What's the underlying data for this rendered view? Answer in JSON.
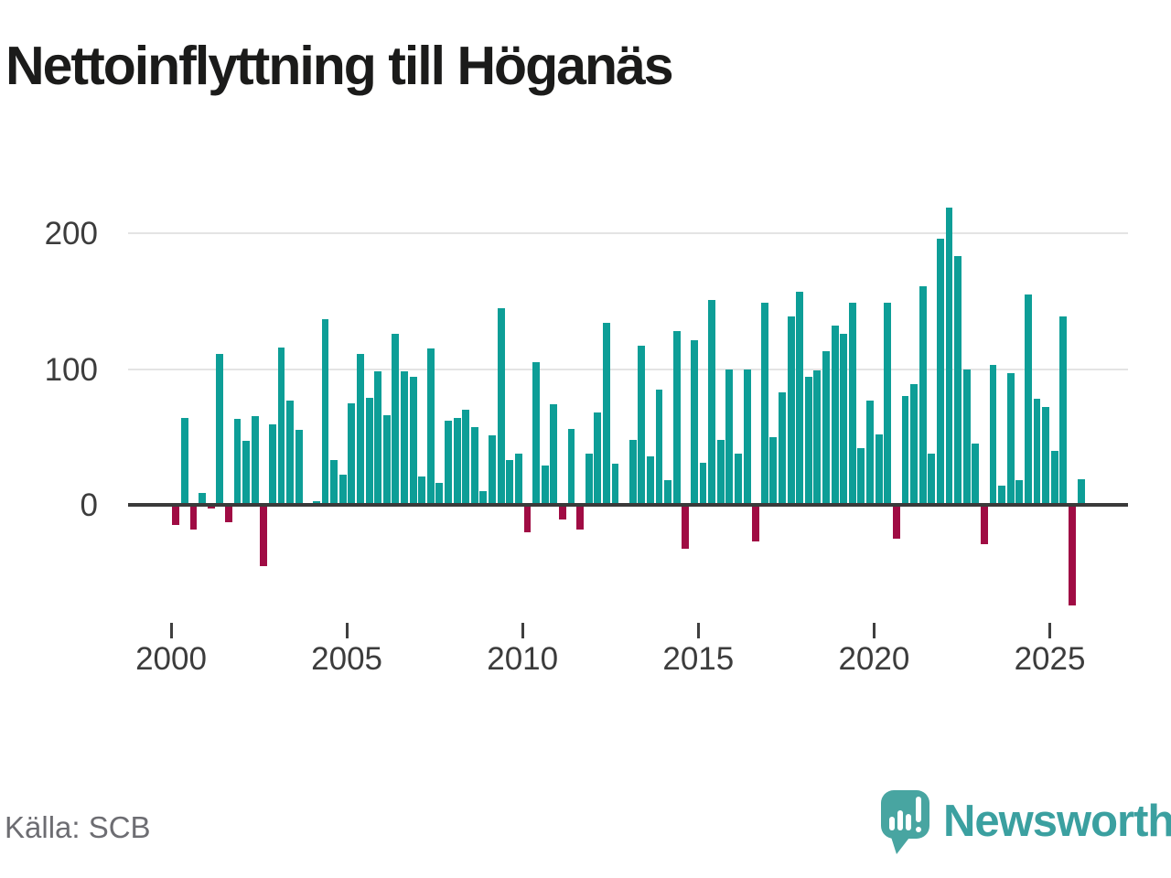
{
  "header": {
    "title": "Nettoinflyttning till Höganäs"
  },
  "footer": {
    "source": "Källa: SCB",
    "brand": "Newsworthy"
  },
  "colors": {
    "positive_bar": "#0d9e97",
    "negative_bar": "#a00c44",
    "gridline": "#e4e4e4",
    "zero_line": "#3a3a3a",
    "axis_text": "#3c3c3c",
    "brand_teal": "#48a5a1",
    "brand_text_teal": "#3ba0a0"
  },
  "chart_data": {
    "type": "bar",
    "title": "Nettoinflyttning till Höganäs",
    "x_start": "2000 Q1",
    "x_frequency": "quarterly",
    "values": [
      -15,
      64,
      -18,
      9,
      -3,
      111,
      -13,
      63,
      47,
      65,
      -45,
      59,
      116,
      77,
      55,
      0,
      3,
      137,
      33,
      22,
      75,
      111,
      79,
      98,
      66,
      126,
      98,
      94,
      21,
      115,
      16,
      62,
      64,
      70,
      57,
      10,
      51,
      145,
      33,
      38,
      -20,
      105,
      29,
      74,
      -11,
      56,
      -18,
      38,
      68,
      134,
      30,
      0,
      48,
      117,
      36,
      85,
      18,
      128,
      -32,
      121,
      31,
      151,
      48,
      100,
      38,
      100,
      -27,
      149,
      50,
      83,
      139,
      157,
      94,
      99,
      113,
      132,
      126,
      149,
      42,
      77,
      52,
      149,
      -25,
      80,
      89,
      161,
      38,
      196,
      219,
      183,
      100,
      45,
      -29,
      103,
      14,
      97,
      18,
      155,
      78,
      72,
      40,
      139,
      -74,
      19
    ],
    "x_tick_labels": [
      "2000",
      "2005",
      "2010",
      "2015",
      "2020",
      "2025"
    ],
    "y_tick_labels": [
      "0",
      "100",
      "200"
    ],
    "y_ticks": [
      0,
      100,
      200
    ],
    "ylim": [
      -90,
      235
    ],
    "grid": "horizontal",
    "legend": "none"
  }
}
